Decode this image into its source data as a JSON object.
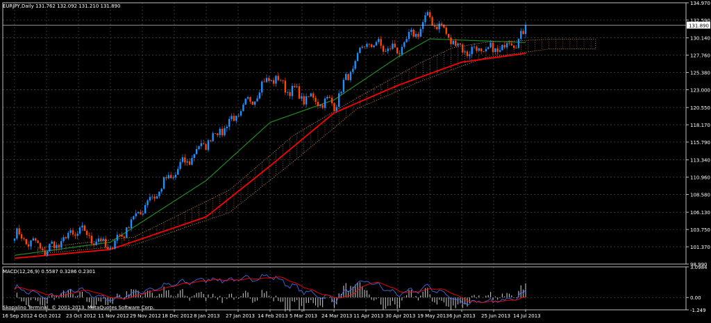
{
  "colors": {
    "background": "#000000",
    "frame": "#c0c0c0",
    "grid": "#5a5a5a",
    "text": "#ffffff",
    "bull": "#1e90ff",
    "bear": "#ff4500",
    "ma_fast": "#228b22",
    "ma_slow": "#ff0000",
    "cloud": "#f4a460",
    "macd_main": "#4169e1",
    "macd_signal": "#ff0000",
    "histogram": "#c0c0c0",
    "divergence": "#32cd32"
  },
  "main_chart": {
    "header": "EURJPY,Daily  131.762 132.092 131.210 131.890",
    "price_ticks": [
      "134.970",
      "132.590",
      "130.140",
      "127.760",
      "125.380",
      "123.000",
      "120.550",
      "118.170",
      "115.790",
      "113.340",
      "110.960",
      "108.580",
      "106.130",
      "103.750",
      "101.370",
      "98.990"
    ],
    "current_price_label": "131.890",
    "current_price": 131.89,
    "ylim": [
      98.99,
      134.97
    ]
  },
  "macd": {
    "header": "MACD(12,26,9) 0.5587 0.3286 0.2301",
    "ticks": [
      "3.0984",
      "0.00",
      "-1.249"
    ],
    "ylim": [
      -1.249,
      3.0984
    ]
  },
  "copyright": "Skopalino Terminal, © 2001-2013, MetaQuotes Software Corp.",
  "date_labels": [
    "16 Sep 2012",
    "4 Oct 2012",
    "23 Oct 2012",
    "11 Nov 2012",
    "29 Nov 2012",
    "18 Dec 2012",
    "8 Jan 2013",
    "27 Jan 2013",
    "14 Feb 2013",
    "5 Mar 2013",
    "24 Mar 2013",
    "11 Apr 2013",
    "30 Apr 2013",
    "19 May 2013",
    "6 Jun 2013",
    "25 Jun 2013",
    "14 Jul 2013"
  ],
  "chart_data": {
    "type": "candlestick",
    "symbol": "EURJPY",
    "timeframe": "Daily",
    "last_bar": {
      "open": 131.762,
      "high": 132.092,
      "low": 131.21,
      "close": 131.89
    },
    "price_anchors": [
      {
        "date": "16 Sep 2012",
        "price": 103.1
      },
      {
        "date": "4 Oct 2012",
        "price": 100.8
      },
      {
        "date": "23 Oct 2012",
        "price": 103.6
      },
      {
        "date": "11 Nov 2012",
        "price": 101.2
      },
      {
        "date": "29 Nov 2012",
        "price": 106.7
      },
      {
        "date": "18 Dec 2012",
        "price": 111.5
      },
      {
        "date": "8 Jan 2013",
        "price": 115.8
      },
      {
        "date": "27 Jan 2013",
        "price": 119.5
      },
      {
        "date": "14 Feb 2013",
        "price": 124.8
      },
      {
        "date": "5 Mar 2013",
        "price": 122.0
      },
      {
        "date": "24 Mar 2013",
        "price": 121.0
      },
      {
        "date": "11 Apr 2013",
        "price": 129.5
      },
      {
        "date": "30 Apr 2013",
        "price": 128.3
      },
      {
        "date": "19 May 2013",
        "price": 133.0
      },
      {
        "date": "6 Jun 2013",
        "price": 128.5
      },
      {
        "date": "25 Jun 2013",
        "price": 128.3
      },
      {
        "date": "14 Jul 2013",
        "price": 130.6
      }
    ],
    "ma_slow_anchors": [
      {
        "date": "16 Sep 2012",
        "value": 99.8
      },
      {
        "date": "11 Nov 2012",
        "value": 101.0
      },
      {
        "date": "8 Jan 2013",
        "value": 105.5
      },
      {
        "date": "14 Feb 2013",
        "value": 112.5
      },
      {
        "date": "24 Mar 2013",
        "value": 119.8
      },
      {
        "date": "30 Apr 2013",
        "value": 123.6
      },
      {
        "date": "6 Jun 2013",
        "value": 126.8
      },
      {
        "date": "14 Jul 2013",
        "value": 128.0
      }
    ],
    "ma_fast_anchors": [
      {
        "date": "16 Sep 2012",
        "value": 100.2
      },
      {
        "date": "11 Nov 2012",
        "value": 102.0
      },
      {
        "date": "8 Jan 2013",
        "value": 110.5
      },
      {
        "date": "14 Feb 2013",
        "value": 118.5
      },
      {
        "date": "24 Mar 2013",
        "value": 121.6
      },
      {
        "date": "30 Apr 2013",
        "value": 127.5
      },
      {
        "date": "19 May 2013",
        "value": 130.0
      },
      {
        "date": "14 Jul 2013",
        "value": 129.5
      }
    ]
  }
}
